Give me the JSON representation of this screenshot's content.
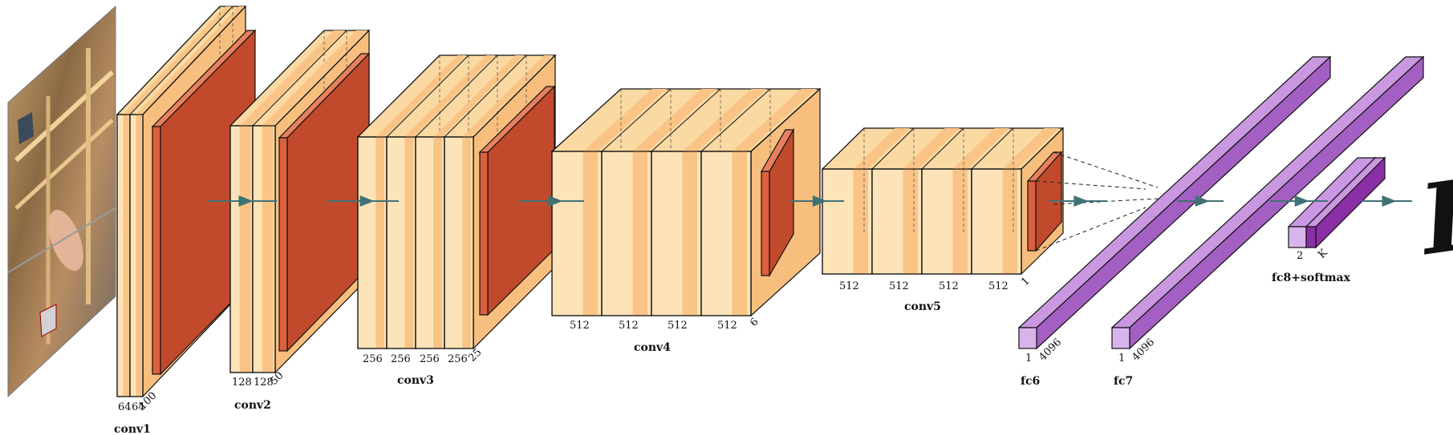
{
  "colors": {
    "conv_fill": "#fde4b8",
    "conv_band": "#f9c486",
    "conv_top": "#fbd9a2",
    "conv_side": "#f7be7e",
    "pool_front": "#dc5f3e",
    "pool_top": "#e8805f",
    "pool_side": "#c24a2c",
    "fc_front": "#d9b4ec",
    "fc_top": "#c998e0",
    "fc_side": "#a45fc3",
    "fc8_dark": "#8a2fa6",
    "arrow": "#3f7276",
    "edge": "#111111"
  },
  "input_image": {
    "description_icon": "photo-of-person-icon"
  },
  "layers": {
    "conv1": {
      "caption": "conv1",
      "dims": [
        "64",
        "64",
        "100"
      ]
    },
    "conv2": {
      "caption": "conv2",
      "dims": [
        "128",
        "128",
        "50"
      ]
    },
    "conv3": {
      "caption": "conv3",
      "dims": [
        "256",
        "256",
        "256",
        "256",
        "25"
      ]
    },
    "conv4": {
      "caption": "conv4",
      "dims": [
        "512",
        "512",
        "512",
        "512",
        "6"
      ]
    },
    "conv5": {
      "caption": "conv5",
      "dims": [
        "512",
        "512",
        "512",
        "512",
        "1"
      ]
    },
    "fc6": {
      "caption": "fc6",
      "dims": [
        "1",
        "4096"
      ]
    },
    "fc7": {
      "caption": "fc7",
      "dims": [
        "1",
        "4096"
      ]
    },
    "fc8": {
      "caption": "fc8+softmax",
      "dims": [
        "2",
        "K"
      ]
    }
  },
  "output_symbol": "F"
}
